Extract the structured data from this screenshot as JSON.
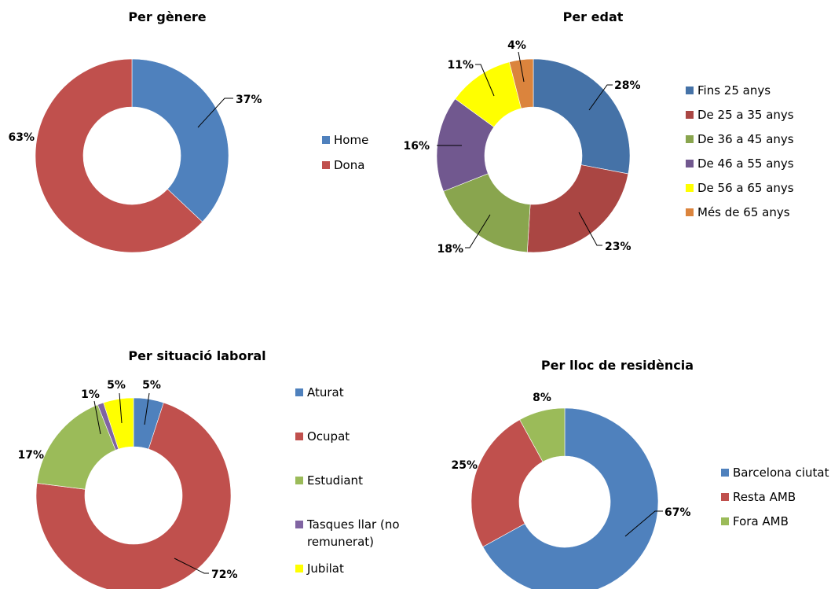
{
  "chart_data": [
    {
      "type": "pie",
      "variant": "donut",
      "title": "Per gènere",
      "categories": [
        "Home",
        "Dona"
      ],
      "values": [
        37,
        63
      ],
      "labels": [
        "37%",
        "63%"
      ],
      "colors": [
        "#4F81BD",
        "#C0504D"
      ],
      "legend": "right"
    },
    {
      "type": "pie",
      "variant": "donut",
      "title": "Per edat",
      "categories": [
        "Fins 25 anys",
        "De 25 a 35 anys",
        "De 36 a 45 anys",
        "De 46 a 55 anys",
        "De 56 a 65 anys",
        "Més de 65 anys"
      ],
      "values": [
        28,
        23,
        18,
        16,
        11,
        4
      ],
      "labels": [
        "28%",
        "23%",
        "18%",
        "16%",
        "11%",
        "4%"
      ],
      "colors": [
        "#4572A7",
        "#AA4643",
        "#89A54E",
        "#71588F",
        "#FFFF00",
        "#DB843D"
      ],
      "legend": "right"
    },
    {
      "type": "pie",
      "variant": "donut",
      "title": "Per situació laboral",
      "categories": [
        "Aturat",
        "Ocupat",
        "Estudiant",
        "Tasques llar (no remunerat)",
        "Jubilat"
      ],
      "legend_lines": [
        [
          "Aturat"
        ],
        [
          "Ocupat"
        ],
        [
          "Estudiant"
        ],
        [
          "Tasques llar (no",
          "remunerat)"
        ],
        [
          "Jubilat"
        ]
      ],
      "values": [
        5,
        72,
        17,
        1,
        5
      ],
      "labels": [
        "5%",
        "72%",
        "17%",
        "1%",
        "5%"
      ],
      "colors": [
        "#4F81BD",
        "#C0504D",
        "#9BBB59",
        "#8064A2",
        "#FFFF00"
      ],
      "legend": "right"
    },
    {
      "type": "pie",
      "variant": "donut",
      "title": "Per lloc de residència",
      "categories": [
        "Barcelona ciutat",
        "Resta AMB",
        "Fora AMB"
      ],
      "values": [
        67,
        25,
        8
      ],
      "labels": [
        "67%",
        "25%",
        "8%"
      ],
      "colors": [
        "#4F81BD",
        "#C0504D",
        "#9BBB59"
      ],
      "legend": "right"
    }
  ]
}
